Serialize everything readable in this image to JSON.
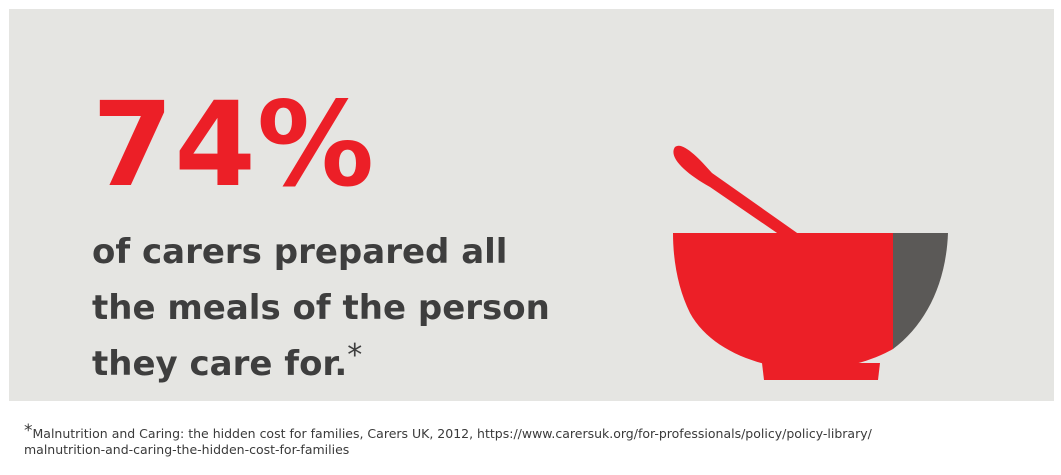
{
  "headline": {
    "stat": "74%",
    "lines": [
      "of carers prepared all",
      "the meals of the person",
      "they care for."
    ],
    "marker": "*"
  },
  "illustration": {
    "icon": "bowl-icon",
    "colors": {
      "red": "#ec1f27",
      "grey": "#5b5957",
      "background": "#e5e5e2"
    }
  },
  "footnote": {
    "marker": "*",
    "text": "Malnutrition and Caring: the hidden cost for families, Carers UK, 2012, https://www.carersuk.org/for-professionals/policy/policy-library/",
    "text_cont": "malnutrition-and-caring-the-hidden-cost-for-families"
  }
}
